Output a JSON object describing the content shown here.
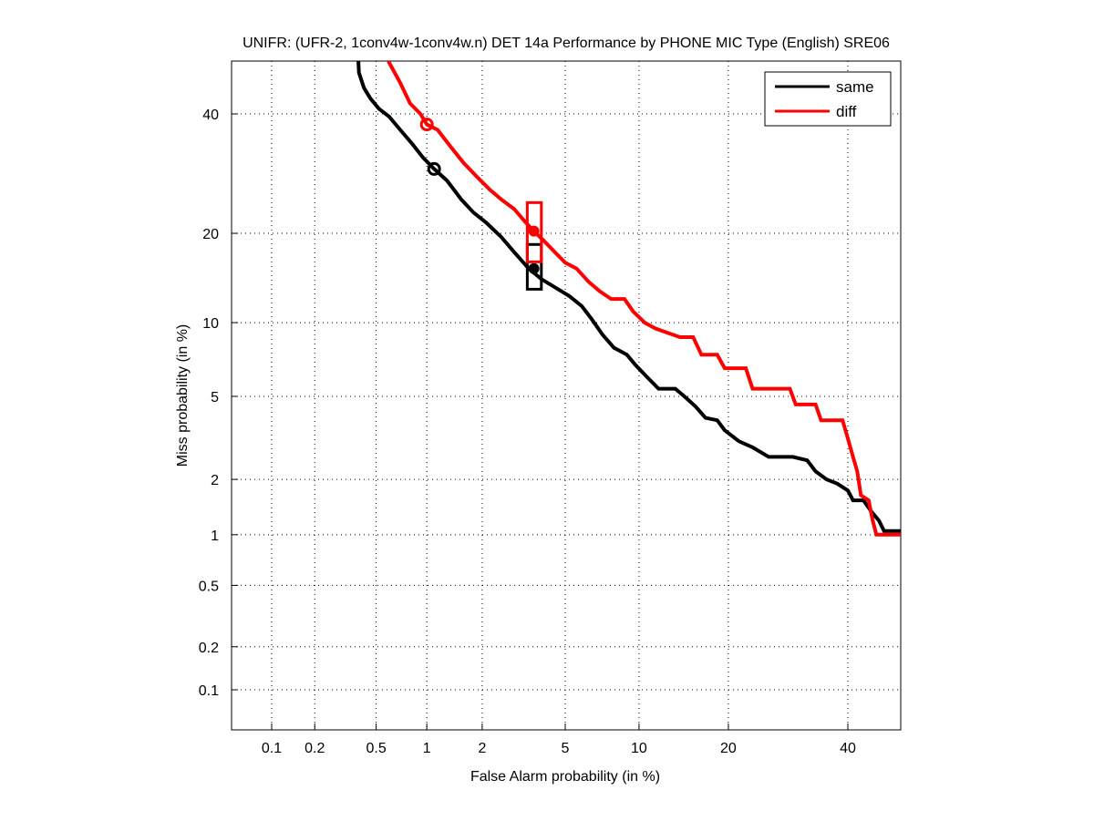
{
  "chart_data": {
    "type": "line",
    "subtype": "DET (probit-scaled axes)",
    "title": "UNIFR: (UFR-2, 1conv4w-1conv4w.n) DET 14a Performance by PHONE MIC Type (English) SRE06",
    "xlabel": "False Alarm probability (in %)",
    "ylabel": "Miss probability (in %)",
    "x_scale": "probit",
    "y_scale": "probit",
    "xlim": [
      0.05,
      55
    ],
    "ylim": [
      0.05,
      55
    ],
    "x_ticks": [
      0.1,
      0.2,
      0.5,
      1,
      2,
      5,
      10,
      20,
      40
    ],
    "x_tick_labels": [
      "0.1",
      "0.2",
      "0.5",
      "1",
      "2",
      "5",
      "10",
      "20",
      "40"
    ],
    "y_ticks": [
      0.1,
      0.2,
      0.5,
      1,
      2,
      5,
      10,
      20,
      40
    ],
    "y_tick_labels": [
      "0.1",
      "0.2",
      "0.5",
      "1",
      "2",
      "5",
      "10",
      "20",
      "40"
    ],
    "grid": true,
    "grid_style": "dotted",
    "legend_position": "top-right",
    "series": [
      {
        "name": "same",
        "color": "#000000",
        "points": [
          [
            0.38,
            55
          ],
          [
            0.39,
            48
          ],
          [
            0.42,
            45
          ],
          [
            0.46,
            43
          ],
          [
            0.52,
            41
          ],
          [
            0.6,
            39.5
          ],
          [
            0.7,
            37
          ],
          [
            0.82,
            34.5
          ],
          [
            0.95,
            32
          ],
          [
            1.1,
            30
          ],
          [
            1.3,
            28
          ],
          [
            1.55,
            25
          ],
          [
            1.8,
            23
          ],
          [
            2.1,
            21.5
          ],
          [
            2.5,
            19.5
          ],
          [
            2.9,
            17.5
          ],
          [
            3.4,
            15.5
          ],
          [
            3.9,
            14.3
          ],
          [
            4.5,
            13.4
          ],
          [
            5.2,
            12.5
          ],
          [
            5.9,
            11.5
          ],
          [
            6.5,
            10.3
          ],
          [
            7.2,
            9.0
          ],
          [
            8.0,
            8.0
          ],
          [
            9.0,
            7.5
          ],
          [
            9.7,
            6.8
          ],
          [
            10.8,
            6.0
          ],
          [
            11.8,
            5.4
          ],
          [
            13.5,
            5.4
          ],
          [
            14.5,
            5.0
          ],
          [
            15.8,
            4.5
          ],
          [
            17.0,
            4.0
          ],
          [
            18.5,
            3.9
          ],
          [
            19.5,
            3.5
          ],
          [
            21.5,
            3.1
          ],
          [
            23.5,
            2.9
          ],
          [
            26,
            2.6
          ],
          [
            30,
            2.6
          ],
          [
            32.5,
            2.5
          ],
          [
            34,
            2.2
          ],
          [
            36,
            2.0
          ],
          [
            38,
            1.9
          ],
          [
            40,
            1.75
          ],
          [
            41,
            1.55
          ],
          [
            43,
            1.55
          ],
          [
            44.5,
            1.35
          ],
          [
            46,
            1.2
          ],
          [
            47,
            1.05
          ],
          [
            55,
            1.05
          ]
        ],
        "min_dcf_point": [
          1.1,
          30
        ],
        "actual_dcf_point": [
          3.6,
          15.5
        ],
        "confidence_box": {
          "x": [
            3.35,
            3.9
          ],
          "y": [
            13.2,
            18.5
          ]
        }
      },
      {
        "name": "diff",
        "color": "#ff0000",
        "points": [
          [
            0.52,
            55
          ],
          [
            0.6,
            50
          ],
          [
            0.7,
            46
          ],
          [
            0.8,
            42
          ],
          [
            0.92,
            40
          ],
          [
            1.0,
            38
          ],
          [
            1.15,
            37
          ],
          [
            1.35,
            34
          ],
          [
            1.6,
            31
          ],
          [
            1.9,
            28.5
          ],
          [
            2.2,
            26.5
          ],
          [
            2.5,
            25
          ],
          [
            2.9,
            23.5
          ],
          [
            3.3,
            21.5
          ],
          [
            3.6,
            20.3
          ],
          [
            4.0,
            19
          ],
          [
            4.5,
            17.5
          ],
          [
            5.0,
            16.2
          ],
          [
            5.6,
            15.5
          ],
          [
            6.3,
            14
          ],
          [
            7.0,
            13
          ],
          [
            7.8,
            12.2
          ],
          [
            8.8,
            12.2
          ],
          [
            9.5,
            11
          ],
          [
            10.5,
            10
          ],
          [
            11.5,
            9.5
          ],
          [
            12.5,
            9.2
          ],
          [
            14,
            8.8
          ],
          [
            15.5,
            8.8
          ],
          [
            16.5,
            7.5
          ],
          [
            18.5,
            7.5
          ],
          [
            19.5,
            6.6
          ],
          [
            22.5,
            6.6
          ],
          [
            23.5,
            5.4
          ],
          [
            29.5,
            5.4
          ],
          [
            30.5,
            4.6
          ],
          [
            34,
            4.6
          ],
          [
            35,
            3.9
          ],
          [
            39,
            3.9
          ],
          [
            40,
            3.2
          ],
          [
            41,
            2.6
          ],
          [
            41.8,
            2.2
          ],
          [
            42.5,
            1.65
          ],
          [
            44,
            1.55
          ],
          [
            44.8,
            1.2
          ],
          [
            45.5,
            1.0
          ],
          [
            55,
            1.0
          ]
        ],
        "min_dcf_point": [
          1.0,
          38
        ],
        "actual_dcf_point": [
          3.6,
          20.3
        ],
        "confidence_box": {
          "x": [
            3.35,
            3.9
          ],
          "y": [
            16.3,
            24.5
          ]
        }
      }
    ]
  }
}
